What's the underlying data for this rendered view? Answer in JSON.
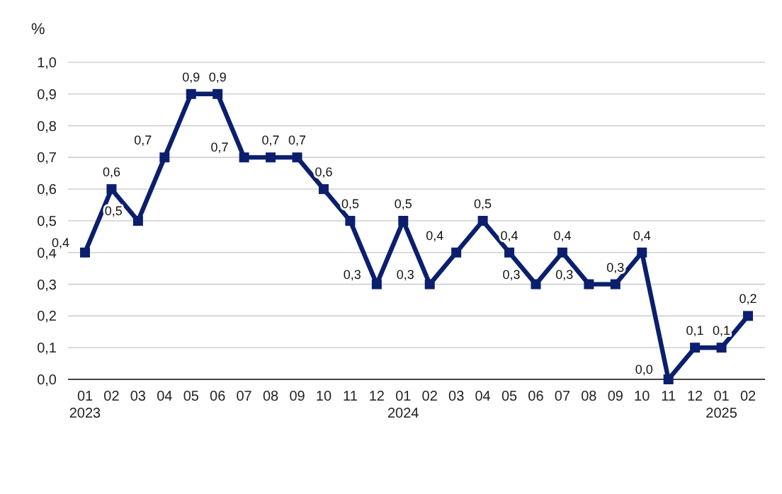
{
  "chart_data": {
    "type": "line",
    "ylabel": "%",
    "categories": [
      "01\n2023",
      "02",
      "03",
      "04",
      "05",
      "06",
      "07",
      "08",
      "09",
      "10",
      "11",
      "12",
      "01\n2024",
      "02",
      "03",
      "04",
      "05",
      "06",
      "07",
      "08",
      "09",
      "10",
      "11",
      "12",
      "01\n2025",
      "02"
    ],
    "series": [
      {
        "color": "#0b1f6e",
        "values": [
          0.4,
          0.6,
          0.5,
          0.7,
          0.9,
          0.9,
          0.7,
          0.7,
          0.7,
          0.6,
          0.5,
          0.3,
          0.5,
          0.3,
          0.4,
          0.5,
          0.4,
          0.3,
          0.4,
          0.3,
          0.3,
          0.4,
          0.0,
          0.1,
          0.1,
          0.2
        ],
        "value_labels": [
          "0,4",
          "0,6",
          "0,5",
          "0,7",
          "0,9",
          "0,9",
          "0,7",
          "0,7",
          "0,7",
          "0,6",
          "0,5",
          "0,3",
          "0,5",
          "0,3",
          "0,4",
          "0,5",
          "0,4",
          "0,3",
          "0,4",
          "0,3",
          "0,3",
          "0,4",
          "0,0",
          "0,1",
          "0,1",
          "0,2"
        ]
      }
    ],
    "ylim": [
      0,
      1
    ],
    "yticks": [
      {
        "value": 0,
        "label": "0,0"
      },
      {
        "value": 0.1,
        "label": "0,1"
      },
      {
        "value": 0.2,
        "label": "0,2"
      },
      {
        "value": 0.3,
        "label": "0,3"
      },
      {
        "value": 0.4,
        "label": "0,4"
      },
      {
        "value": 0.5,
        "label": "0,5"
      },
      {
        "value": 0.6,
        "label": "0,6"
      },
      {
        "value": 0.7,
        "label": "0,7"
      },
      {
        "value": 0.8,
        "label": "0,8"
      },
      {
        "value": 0.9,
        "label": "0,9"
      },
      {
        "value": 1,
        "label": "1,0"
      }
    ],
    "grid": "y",
    "marker": "square",
    "line_style": "solid"
  }
}
